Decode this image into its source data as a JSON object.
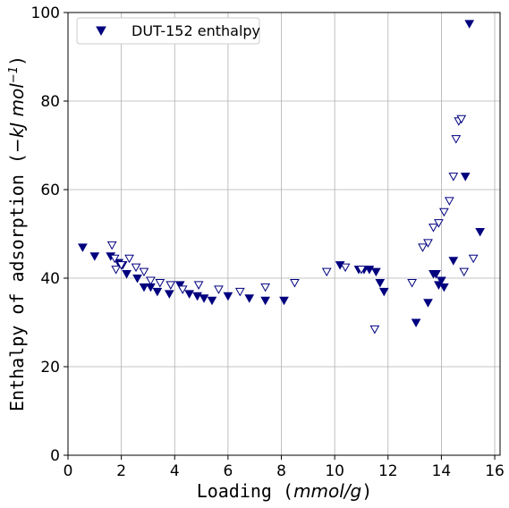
{
  "chart_data": {
    "type": "scatter",
    "title": "",
    "xlabel": "Loading ($mmol/g$)",
    "xlabel_parts": {
      "prefix": "Loading (",
      "unit": "mmol/g",
      "suffix": ")"
    },
    "ylabel": "Enthalpy of adsorption ($-kJmol^{-1}$)",
    "ylabel_parts": {
      "prefix": "Enthalpy of adsorption (",
      "unit": "−kJ mol",
      "exp": "−1",
      "suffix": ")"
    },
    "xlim": [
      0,
      16.2
    ],
    "ylim": [
      0,
      100
    ],
    "xticks": [
      "0",
      "2",
      "4",
      "6",
      "8",
      "10",
      "12",
      "14",
      "16"
    ],
    "yticks": [
      "0",
      "20",
      "40",
      "60",
      "80",
      "100"
    ],
    "grid": true,
    "legend_position": "top-left",
    "colors": {
      "marker": "#00007f"
    },
    "series": [
      {
        "name": "DUT-152 enthalpy",
        "marker": "filled-triangle-down",
        "x": [
          0.55,
          1.0,
          1.6,
          1.9,
          2.05,
          2.2,
          2.6,
          2.85,
          3.1,
          3.35,
          3.8,
          4.2,
          4.55,
          4.85,
          5.1,
          5.4,
          6.0,
          6.8,
          7.4,
          8.1,
          10.2,
          10.9,
          11.1,
          11.3,
          11.55,
          11.7,
          11.85,
          13.05,
          13.5,
          13.7,
          13.8,
          13.9,
          14.0,
          14.1,
          14.45,
          14.9,
          15.05,
          15.45
        ],
        "y": [
          47,
          45,
          45,
          43.5,
          43,
          41,
          40,
          38,
          38,
          37,
          36.5,
          38.5,
          36.5,
          36,
          35.5,
          35,
          36,
          35.5,
          35,
          35,
          43,
          42,
          42,
          42,
          41.5,
          39,
          37,
          30,
          34.5,
          41,
          41,
          38.5,
          39.5,
          38,
          44,
          63,
          97.5,
          50.5
        ]
      },
      {
        "name": "",
        "marker": "open-triangle-down",
        "x": [
          1.65,
          1.75,
          1.8,
          2.0,
          2.3,
          2.55,
          2.85,
          3.1,
          3.45,
          3.85,
          4.3,
          4.9,
          5.65,
          6.45,
          7.4,
          8.5,
          9.7,
          10.4,
          11.0,
          11.5,
          12.9,
          13.3,
          13.5,
          13.7,
          13.9,
          14.1,
          14.3,
          14.45,
          14.55,
          14.65,
          14.75,
          14.85,
          15.2
        ],
        "y": [
          47.5,
          44.5,
          42,
          43,
          44.5,
          42.5,
          41.5,
          39.5,
          39,
          38.5,
          37.5,
          38.5,
          37.5,
          37,
          38,
          39,
          41.5,
          42.5,
          42,
          28.5,
          39,
          47,
          48,
          51.5,
          52.5,
          55,
          57.5,
          63,
          71.5,
          75.5,
          76,
          41.5,
          44.5
        ]
      }
    ]
  }
}
